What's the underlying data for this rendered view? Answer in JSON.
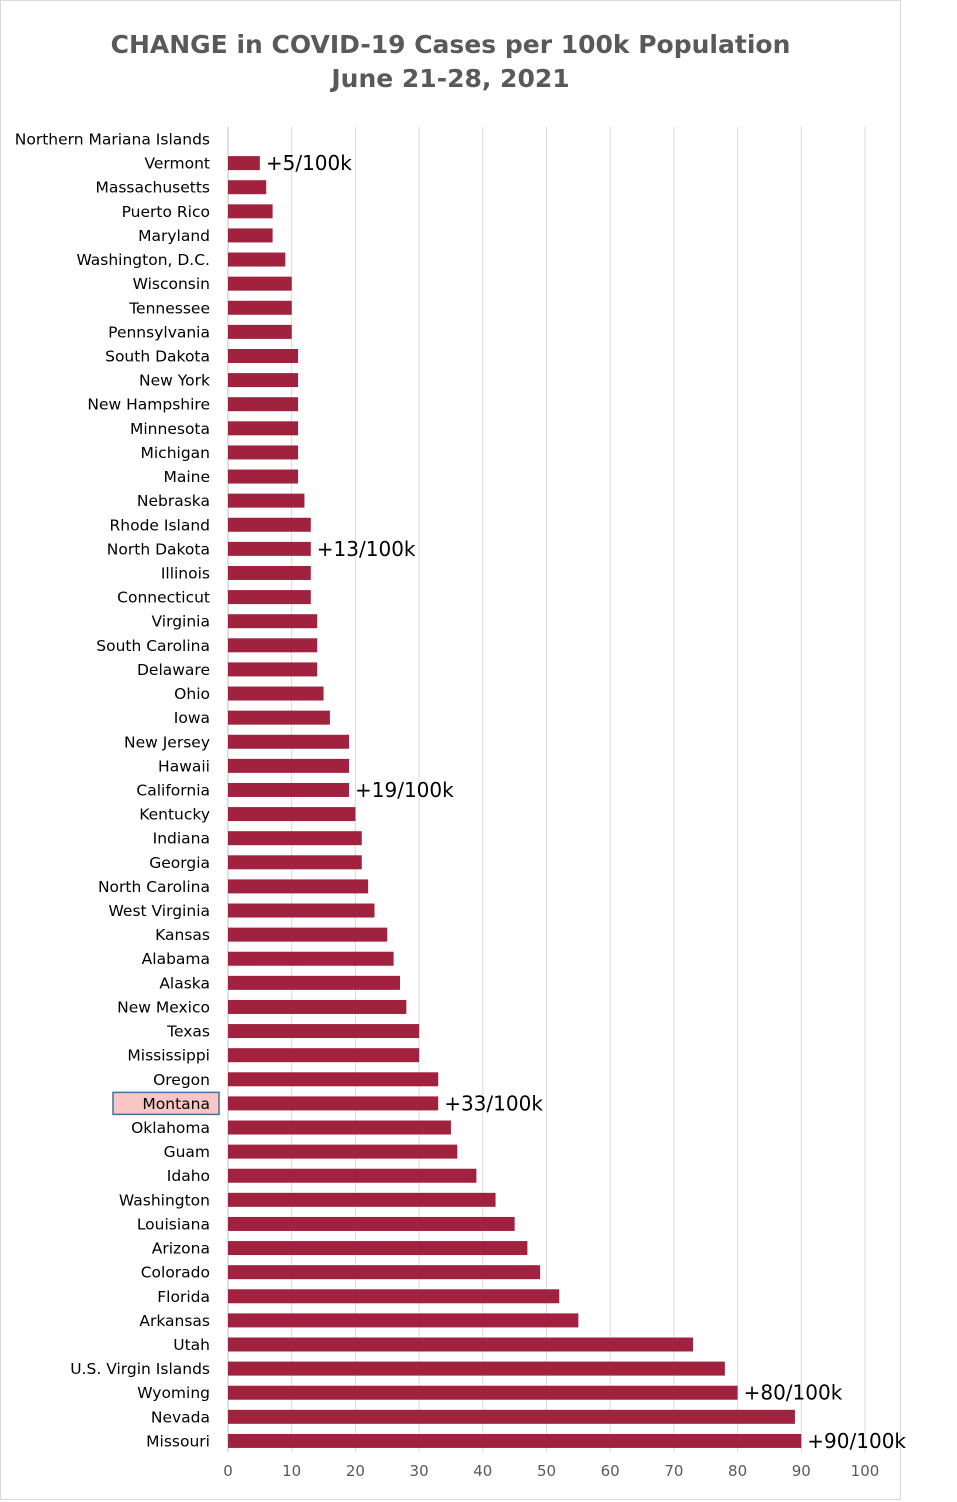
{
  "chart_data": {
    "type": "bar",
    "orientation": "horizontal",
    "title": "CHANGE in COVID-19 Cases per 100k Population",
    "subtitle": "June 21-28, 2021",
    "xlabel": "",
    "ylabel": "",
    "xlim": [
      0,
      100
    ],
    "x_ticks": [
      "0",
      "10",
      "20",
      "30",
      "40",
      "50",
      "60",
      "70",
      "80",
      "90",
      "100"
    ],
    "grid": "vertical",
    "bar_color": "#A0223F",
    "categories": [
      "Northern Mariana Islands",
      "Vermont",
      "Massachusetts",
      "Puerto Rico",
      "Maryland",
      "Washington, D.C.",
      "Wisconsin",
      "Tennessee",
      "Pennsylvania",
      "South Dakota",
      "New York",
      "New Hampshire",
      "Minnesota",
      "Michigan",
      "Maine",
      "Nebraska",
      "Rhode Island",
      "North Dakota",
      "Illinois",
      "Connecticut",
      "Virginia",
      "South Carolina",
      "Delaware",
      "Ohio",
      "Iowa",
      "New Jersey",
      "Hawaii",
      "California",
      "Kentucky",
      "Indiana",
      "Georgia",
      "North Carolina",
      "West Virginia",
      "Kansas",
      "Alabama",
      "Alaska",
      "New Mexico",
      "Texas",
      "Mississippi",
      "Oregon",
      "Montana",
      "Oklahoma",
      "Guam",
      "Idaho",
      "Washington",
      "Louisiana",
      "Arizona",
      "Colorado",
      "Florida",
      "Arkansas",
      "Utah",
      "U.S. Virgin Islands",
      "Wyoming",
      "Nevada",
      "Missouri"
    ],
    "values": [
      0,
      5,
      6,
      7,
      7,
      9,
      10,
      10,
      10,
      11,
      11,
      11,
      11,
      11,
      11,
      12,
      13,
      13,
      13,
      13,
      14,
      14,
      14,
      15,
      16,
      19,
      19,
      19,
      20,
      21,
      21,
      22,
      23,
      25,
      26,
      27,
      28,
      30,
      30,
      33,
      33,
      35,
      36,
      39,
      42,
      45,
      47,
      49,
      52,
      55,
      73,
      78,
      80,
      89,
      90
    ],
    "annotations": [
      {
        "category": "Vermont",
        "text": "+5/100k"
      },
      {
        "category": "North Dakota",
        "text": "+13/100k"
      },
      {
        "category": "California",
        "text": "+19/100k"
      },
      {
        "category": "Montana",
        "text": "+33/100k"
      },
      {
        "category": "Wyoming",
        "text": "+80/100k"
      },
      {
        "category": "Missouri",
        "text": "+90/100k"
      }
    ],
    "highlight": {
      "category": "Montana",
      "fill": "#F9C6C6",
      "border": "#41719C"
    }
  }
}
